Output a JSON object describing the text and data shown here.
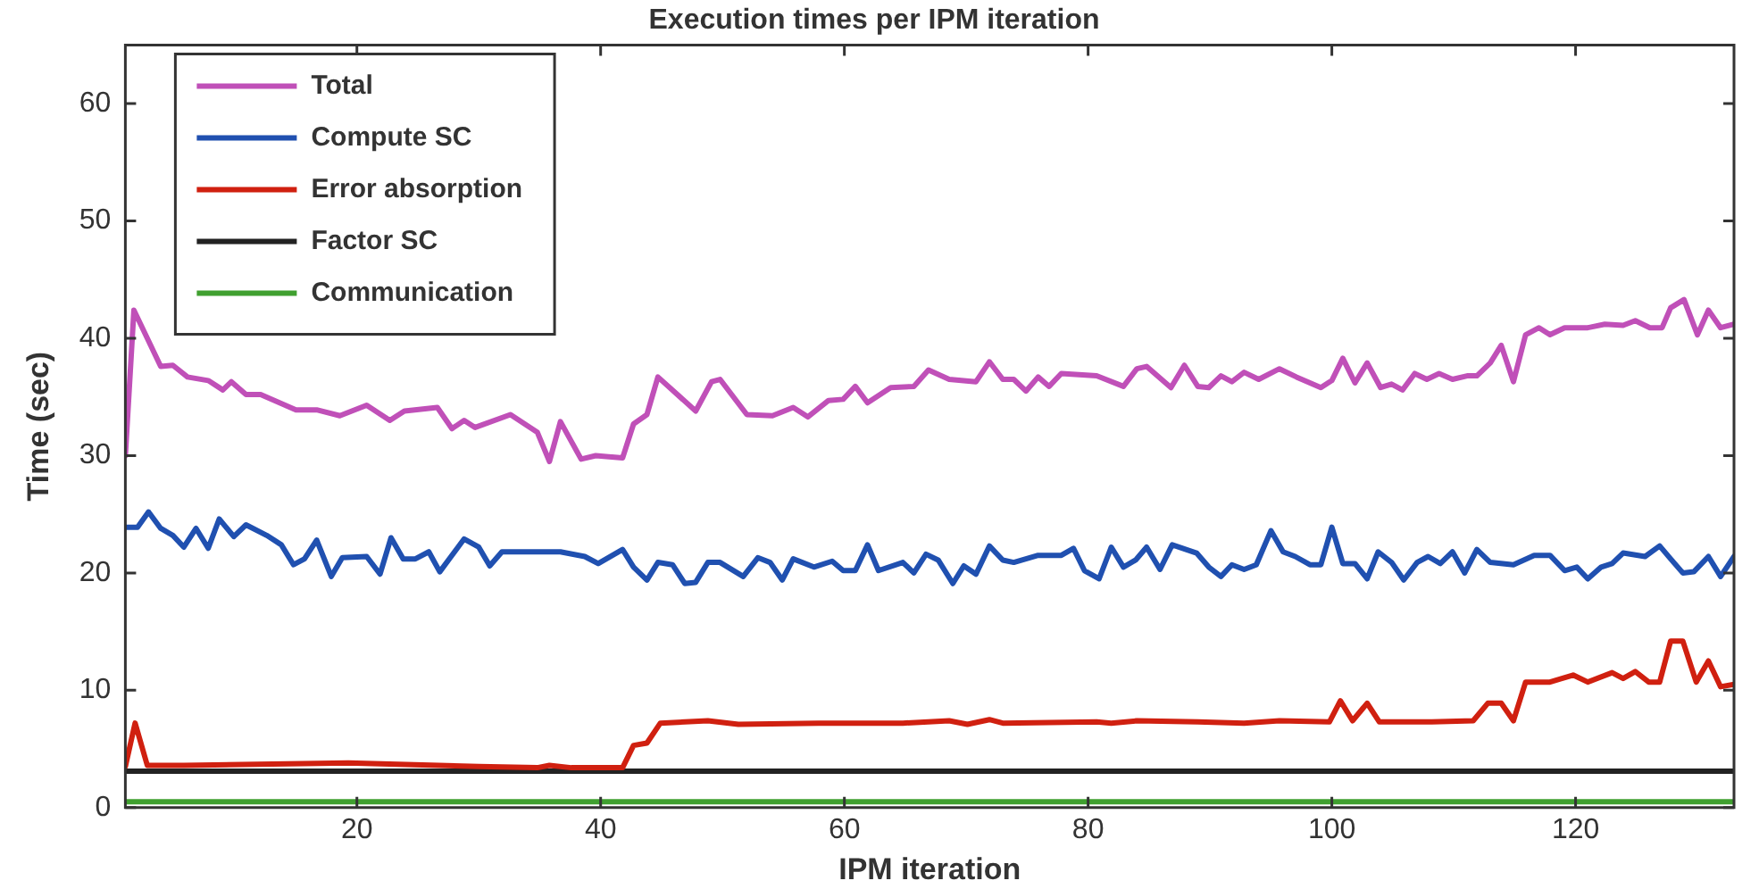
{
  "chart_data": {
    "type": "line",
    "title": "Execution times per IPM iteration",
    "xlabel": "IPM iteration",
    "ylabel": "Time (sec)",
    "xlim": [
      1,
      133
    ],
    "xticks": [
      20,
      40,
      60,
      80,
      100,
      120
    ],
    "ylim": [
      0,
      65
    ],
    "yticks": [
      0,
      10,
      20,
      30,
      40,
      50,
      60
    ],
    "grid": false,
    "legend": "top left",
    "marker": "none",
    "line_style": "solid",
    "series": [
      {
        "name": "Total",
        "color": "#c050b8",
        "x": [
          1,
          1.7,
          3.9,
          4.9,
          6.1,
          7.8,
          9,
          9.7,
          10.9,
          12.1,
          15,
          16.7,
          18.6,
          20.8,
          22.7,
          23.9,
          26.6,
          27.8,
          28.8,
          29.7,
          32.6,
          34.8,
          35.8,
          36.7,
          38.4,
          39.6,
          41.8,
          42.7,
          43.8,
          44.7,
          47.8,
          49.1,
          49.8,
          52,
          54.1,
          55.8,
          57,
          58.7,
          59.9,
          60.9,
          61.9,
          63.8,
          65.7,
          66.9,
          68.6,
          70.8,
          71.9,
          73,
          73.9,
          74.9,
          75.9,
          76.8,
          77.8,
          80.7,
          82.9,
          84,
          84.8,
          86.8,
          87.9,
          89,
          89.9,
          90.9,
          91.8,
          92.8,
          94,
          95.7,
          97.1,
          99.1,
          100,
          100.9,
          101.9,
          102.9,
          104,
          104.9,
          105.8,
          106.8,
          107.8,
          108.8,
          109.9,
          111.1,
          111.9,
          113,
          113.9,
          114.9,
          115.9,
          117,
          117.9,
          119.1,
          121,
          122.4,
          123.9,
          124.9,
          126.1,
          127.1,
          127.8,
          128.9,
          130,
          130.9,
          131.9,
          133
        ],
        "values": [
          30,
          42.4,
          37.6,
          37.7,
          36.7,
          36.4,
          35.6,
          36.3,
          35.2,
          35.2,
          33.9,
          33.9,
          33.4,
          34.3,
          33,
          33.8,
          34.1,
          32.3,
          33,
          32.4,
          33.5,
          32,
          29.5,
          32.9,
          29.7,
          30,
          29.8,
          32.7,
          33.5,
          36.7,
          33.8,
          36.3,
          36.5,
          33.5,
          33.4,
          34.1,
          33.3,
          34.7,
          34.8,
          35.9,
          34.5,
          35.8,
          35.9,
          37.3,
          36.5,
          36.3,
          38,
          36.5,
          36.5,
          35.5,
          36.7,
          35.9,
          37,
          36.8,
          35.9,
          37.4,
          37.6,
          35.8,
          37.7,
          35.9,
          35.8,
          36.8,
          36.3,
          37.1,
          36.5,
          37.4,
          36.7,
          35.8,
          36.4,
          38.3,
          36.2,
          37.9,
          35.8,
          36.1,
          35.6,
          37,
          36.5,
          37,
          36.5,
          36.8,
          36.8,
          37.9,
          39.4,
          36.3,
          40.3,
          40.9,
          40.3,
          40.9,
          40.9,
          41.2,
          41.1,
          41.5,
          40.9,
          40.9,
          42.6,
          43.3,
          40.3,
          42.4,
          40.9,
          41.2
        ]
      },
      {
        "name": "Compute SC",
        "color": "#2050b0",
        "x": [
          1,
          2,
          2.9,
          3.9,
          4.9,
          5.8,
          6.8,
          7.8,
          8.7,
          9.9,
          10.9,
          12.6,
          13.8,
          14.8,
          15.7,
          16.7,
          17.9,
          18.8,
          20.8,
          21.9,
          22.8,
          23.8,
          24.8,
          25.9,
          26.8,
          28.8,
          30,
          30.9,
          31.9,
          34.8,
          36.7,
          38.7,
          39.8,
          41.8,
          42.7,
          43.8,
          44.7,
          45.9,
          46.9,
          47.8,
          48.8,
          49.8,
          51.7,
          52.9,
          53.9,
          54.9,
          55.8,
          57.5,
          59,
          59.9,
          60.9,
          61.9,
          62.8,
          64.8,
          65.7,
          66.7,
          67.7,
          68.9,
          69.8,
          70.8,
          71.9,
          73,
          73.9,
          75.9,
          77.8,
          78.8,
          79.7,
          80.9,
          81.9,
          82.9,
          83.9,
          84.8,
          85.9,
          86.9,
          88.9,
          89.9,
          90.9,
          91.8,
          92.8,
          93.8,
          95,
          96,
          97,
          98.2,
          99.1,
          100,
          100.9,
          101.9,
          102.9,
          103.8,
          104.9,
          105.9,
          107,
          107.9,
          108.9,
          109.9,
          110.9,
          111.9,
          113,
          114.9,
          116.6,
          117.9,
          119.1,
          120.1,
          121,
          122.1,
          123,
          123.9,
          125.7,
          126.9,
          127.8,
          128.8,
          129.7,
          130.9,
          131.9,
          133
        ],
        "values": [
          23.9,
          23.9,
          25.2,
          23.8,
          23.2,
          22.2,
          23.8,
          22.1,
          24.6,
          23.1,
          24.1,
          23.2,
          22.4,
          20.7,
          21.2,
          22.8,
          19.7,
          21.3,
          21.4,
          19.9,
          23,
          21.2,
          21.2,
          21.8,
          20.1,
          22.9,
          22.2,
          20.6,
          21.8,
          21.8,
          21.8,
          21.4,
          20.8,
          22,
          20.5,
          19.4,
          20.9,
          20.7,
          19.1,
          19.2,
          20.9,
          20.9,
          19.7,
          21.3,
          20.9,
          19.4,
          21.2,
          20.5,
          21,
          20.2,
          20.2,
          22.4,
          20.2,
          20.9,
          20,
          21.6,
          21.1,
          19.1,
          20.6,
          19.9,
          22.3,
          21.1,
          20.9,
          21.5,
          21.5,
          22.1,
          20.2,
          19.5,
          22.2,
          20.5,
          21.1,
          22.2,
          20.3,
          22.4,
          21.7,
          20.5,
          19.7,
          20.7,
          20.3,
          20.7,
          23.6,
          21.8,
          21.4,
          20.7,
          20.7,
          23.9,
          20.8,
          20.8,
          19.5,
          21.8,
          20.9,
          19.4,
          20.9,
          21.4,
          20.8,
          21.8,
          20,
          22,
          20.9,
          20.7,
          21.5,
          21.5,
          20.2,
          20.5,
          19.5,
          20.5,
          20.8,
          21.7,
          21.4,
          22.3,
          21.2,
          20,
          20.1,
          21.4,
          19.7,
          21.4
        ]
      },
      {
        "name": "Error absorption",
        "color": "#d02010",
        "x": [
          1,
          1.8,
          2.8,
          5.8,
          19.3,
          30,
          34.8,
          35.8,
          37.6,
          41.8,
          42.7,
          43.8,
          44.9,
          48.8,
          51.3,
          57.9,
          64.8,
          68.6,
          70.1,
          71.9,
          73,
          80.7,
          81.9,
          84,
          89,
          92.8,
          95.7,
          99.8,
          100.7,
          101.7,
          102.9,
          103.9,
          108.2,
          111.6,
          112.8,
          113.9,
          114.9,
          115.9,
          117.9,
          119.8,
          121,
          123,
          123.9,
          124.9,
          126,
          126.9,
          127.8,
          128.8,
          129.9,
          130.9,
          131.9,
          133
        ],
        "values": [
          3.5,
          7.2,
          3.6,
          3.6,
          3.8,
          3.5,
          3.4,
          3.6,
          3.4,
          3.4,
          5.3,
          5.5,
          7.2,
          7.4,
          7.1,
          7.2,
          7.2,
          7.4,
          7.1,
          7.5,
          7.2,
          7.3,
          7.2,
          7.4,
          7.3,
          7.2,
          7.4,
          7.3,
          9.1,
          7.4,
          8.9,
          7.3,
          7.3,
          7.4,
          8.9,
          8.9,
          7.4,
          10.7,
          10.7,
          11.3,
          10.7,
          11.5,
          11,
          11.6,
          10.7,
          10.7,
          14.2,
          14.2,
          10.7,
          12.5,
          10.3,
          10.5
        ]
      },
      {
        "name": "Factor SC",
        "color": "#222222",
        "x": [
          1,
          133
        ],
        "values": [
          3.1,
          3.1
        ]
      },
      {
        "name": "Communication",
        "color": "#40a030",
        "x": [
          1,
          133
        ],
        "values": [
          0.5,
          0.5
        ]
      }
    ]
  }
}
